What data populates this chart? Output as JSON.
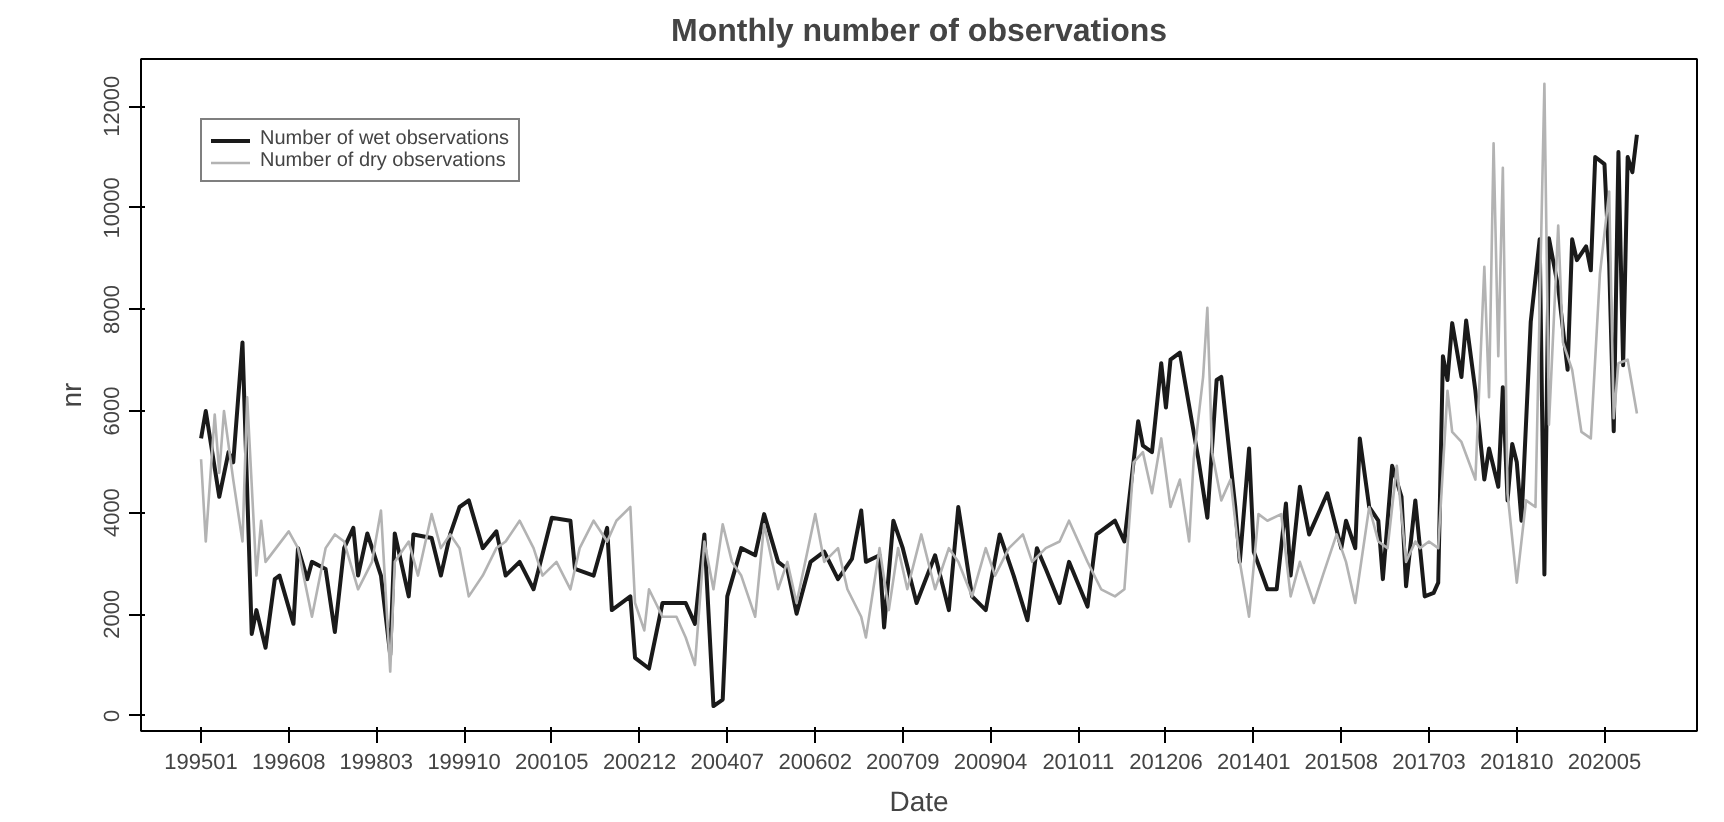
{
  "chart_data": {
    "type": "line",
    "title": "Monthly number of observations",
    "xlabel": "Date",
    "ylabel": "nr",
    "xlim": [
      "1993-12",
      "2022-01"
    ],
    "ylim": [
      -300,
      12930
    ],
    "xticks": [
      {
        "value": "1995-01",
        "label": "199501"
      },
      {
        "value": "1996-08",
        "label": "199608"
      },
      {
        "value": "1998-03",
        "label": "199803"
      },
      {
        "value": "1999-10",
        "label": "199910"
      },
      {
        "value": "2001-05",
        "label": "200105"
      },
      {
        "value": "2002-12",
        "label": "200212"
      },
      {
        "value": "2004-07",
        "label": "200407"
      },
      {
        "value": "2006-02",
        "label": "200602"
      },
      {
        "value": "2007-09",
        "label": "200709"
      },
      {
        "value": "2009-04",
        "label": "200904"
      },
      {
        "value": "2010-11",
        "label": "201011"
      },
      {
        "value": "2012-06",
        "label": "201206"
      },
      {
        "value": "2014-01",
        "label": "201401"
      },
      {
        "value": "2015-08",
        "label": "201508"
      },
      {
        "value": "2017-03",
        "label": "201703"
      },
      {
        "value": "2018-10",
        "label": "201810"
      },
      {
        "value": "2020-05",
        "label": "202005"
      }
    ],
    "yticks": [
      0,
      2000,
      4000,
      6000,
      8000,
      10000,
      12000
    ],
    "grid": false,
    "legend": "top left",
    "line_style": "solid",
    "series": [
      {
        "name": "Number of wet observations",
        "color": "#1a1a1a",
        "x": [
          "1995-01",
          "1995-02",
          "1995-05",
          "1995-07",
          "1995-08",
          "1995-10",
          "1995-12",
          "1996-01",
          "1996-03",
          "1996-05",
          "1996-06",
          "1996-09",
          "1996-10",
          "1996-12",
          "1997-01",
          "1997-04",
          "1997-06",
          "1997-08",
          "1997-10",
          "1997-11",
          "1998-01",
          "1998-04",
          "1998-06",
          "1998-07",
          "1998-10",
          "1998-11",
          "1999-03",
          "1999-05",
          "1999-07",
          "1999-09",
          "1999-11",
          "2000-02",
          "2000-05",
          "2000-07",
          "2000-10",
          "2001-01",
          "2001-05",
          "2001-09",
          "2001-10",
          "2002-02",
          "2002-05",
          "2002-06",
          "2002-10",
          "2002-11",
          "2003-02",
          "2003-05",
          "2003-10",
          "2003-12",
          "2004-02",
          "2004-04",
          "2004-06",
          "2004-07",
          "2004-10",
          "2005-01",
          "2005-03",
          "2005-06",
          "2005-08",
          "2005-10",
          "2006-01",
          "2006-04",
          "2006-07",
          "2006-10",
          "2006-12",
          "2007-01",
          "2007-04",
          "2007-05",
          "2007-07",
          "2007-09",
          "2007-12",
          "2008-04",
          "2008-07",
          "2008-09",
          "2008-12",
          "2009-03",
          "2009-06",
          "2009-09",
          "2009-12",
          "2010-02",
          "2010-04",
          "2010-07",
          "2010-09",
          "2011-01",
          "2011-03",
          "2011-07",
          "2011-09",
          "2011-12",
          "2012-01",
          "2012-03",
          "2012-05",
          "2012-06",
          "2012-07",
          "2012-09",
          "2013-01",
          "2013-03",
          "2013-05",
          "2013-06",
          "2013-09",
          "2013-10",
          "2013-12",
          "2014-01",
          "2014-04",
          "2014-06",
          "2014-08",
          "2014-09",
          "2014-11",
          "2015-01",
          "2015-05",
          "2015-08",
          "2015-09",
          "2015-11",
          "2015-12",
          "2016-02",
          "2016-04",
          "2016-05",
          "2016-07",
          "2016-09",
          "2016-10",
          "2016-12",
          "2017-02",
          "2017-04",
          "2017-05",
          "2017-06",
          "2017-07",
          "2017-08",
          "2017-10",
          "2017-11",
          "2018-01",
          "2018-03",
          "2018-04",
          "2018-06",
          "2018-07",
          "2018-08",
          "2018-09",
          "2018-10",
          "2018-11",
          "2019-01",
          "2019-03",
          "2019-04",
          "2019-05",
          "2019-07",
          "2019-09",
          "2019-10",
          "2019-11",
          "2020-01",
          "2020-02",
          "2020-03",
          "2020-05",
          "2020-06",
          "2020-07",
          "2020-08",
          "2020-09",
          "2020-10",
          "2020-11",
          "2020-12"
        ],
        "values": [
          5460,
          6000,
          4310,
          5190,
          4990,
          7350,
          1610,
          2080,
          1340,
          2690,
          2760,
          1810,
          3300,
          2690,
          3030,
          2890,
          1650,
          3300,
          3700,
          2760,
          3590,
          2760,
          1200,
          3590,
          2350,
          3570,
          3500,
          2760,
          3570,
          4110,
          4240,
          3300,
          3630,
          2760,
          3030,
          2490,
          3900,
          3840,
          2890,
          2760,
          3700,
          2080,
          2350,
          1140,
          930,
          2220,
          2220,
          1810,
          3570,
          190,
          320,
          2350,
          3300,
          3160,
          3970,
          3030,
          2890,
          2010,
          3030,
          3230,
          2690,
          3090,
          4040,
          3030,
          3160,
          1740,
          3840,
          3300,
          2220,
          3160,
          2080,
          4110,
          2350,
          2080,
          3570,
          2760,
          1880,
          3300,
          2890,
          2220,
          3030,
          2150,
          3570,
          3840,
          3430,
          5800,
          5320,
          5190,
          6940,
          6070,
          7010,
          7150,
          5050,
          3900,
          6610,
          6670,
          4110,
          3030,
          5260,
          3230,
          2490,
          2490,
          4180,
          2760,
          4510,
          3570,
          4380,
          3300,
          3840,
          3300,
          5460,
          4110,
          3840,
          2690,
          4920,
          4310,
          2550,
          4240,
          2350,
          2420,
          2620,
          7080,
          6610,
          7730,
          6670,
          7780,
          6400,
          4650,
          5260,
          4510,
          6470,
          4240,
          5350,
          4990,
          3840,
          7760,
          9380,
          2780,
          9400,
          8430,
          6810,
          9380,
          8970,
          9240,
          8770,
          11000,
          10860,
          8900,
          5600,
          11100,
          6900,
          11000,
          10700,
          11440
        ]
      },
      {
        "name": "Number of dry observations",
        "color": "#b3b3b3",
        "x": [
          "1995-01",
          "1995-02",
          "1995-04",
          "1995-05",
          "1995-06",
          "1995-08",
          "1995-10",
          "1995-11",
          "1996-01",
          "1996-02",
          "1996-03",
          "1996-08",
          "1996-10",
          "1997-01",
          "1997-04",
          "1997-06",
          "1997-08",
          "1997-11",
          "1998-02",
          "1998-04",
          "1998-06",
          "1998-07",
          "1998-10",
          "1998-12",
          "1999-03",
          "1999-05",
          "1999-07",
          "1999-09",
          "1999-11",
          "2000-02",
          "2000-05",
          "2000-07",
          "2000-10",
          "2001-01",
          "2001-03",
          "2001-06",
          "2001-09",
          "2001-11",
          "2002-02",
          "2002-05",
          "2002-07",
          "2002-10",
          "2002-11",
          "2003-01",
          "2003-02",
          "2003-05",
          "2003-08",
          "2003-10",
          "2003-12",
          "2004-02",
          "2004-04",
          "2004-06",
          "2004-08",
          "2004-10",
          "2005-01",
          "2005-03",
          "2005-06",
          "2005-08",
          "2005-10",
          "2006-02",
          "2006-04",
          "2006-07",
          "2006-09",
          "2006-12",
          "2007-01",
          "2007-04",
          "2007-06",
          "2007-08",
          "2007-10",
          "2008-01",
          "2008-04",
          "2008-07",
          "2008-09",
          "2008-12",
          "2009-03",
          "2009-05",
          "2009-08",
          "2009-11",
          "2010-01",
          "2010-04",
          "2010-07",
          "2010-09",
          "2011-01",
          "2011-04",
          "2011-07",
          "2011-09",
          "2011-11",
          "2012-01",
          "2012-03",
          "2012-05",
          "2012-07",
          "2012-09",
          "2012-11",
          "2012-12",
          "2013-02",
          "2013-03",
          "2013-04",
          "2013-06",
          "2013-08",
          "2013-10",
          "2013-12",
          "2014-02",
          "2014-04",
          "2014-07",
          "2014-09",
          "2014-11",
          "2015-02",
          "2015-04",
          "2015-07",
          "2015-09",
          "2015-11",
          "2016-02",
          "2016-04",
          "2016-06",
          "2016-08",
          "2016-10",
          "2016-12",
          "2017-01",
          "2017-03",
          "2017-05",
          "2017-07",
          "2017-08",
          "2017-10",
          "2018-01",
          "2018-03",
          "2018-04",
          "2018-05",
          "2018-06",
          "2018-07",
          "2018-08",
          "2018-10",
          "2018-12",
          "2019-02",
          "2019-04",
          "2019-05",
          "2019-07",
          "2019-08",
          "2019-10",
          "2019-12",
          "2020-02",
          "2020-04",
          "2020-06",
          "2020-07",
          "2020-08",
          "2020-10",
          "2020-12"
        ],
        "values": [
          5050,
          3430,
          5930,
          4780,
          6000,
          4650,
          3430,
          6270,
          2760,
          3840,
          3030,
          3630,
          3300,
          1950,
          3300,
          3570,
          3430,
          2490,
          3030,
          4040,
          870,
          3030,
          3430,
          2760,
          3970,
          3300,
          3570,
          3300,
          2350,
          2760,
          3300,
          3430,
          3840,
          3300,
          2760,
          3030,
          2490,
          3300,
          3840,
          3430,
          3840,
          4110,
          2220,
          1680,
          2490,
          1950,
          1950,
          1540,
          1000,
          3430,
          2490,
          3770,
          3030,
          2760,
          1950,
          3770,
          2490,
          3030,
          2220,
          3970,
          3030,
          3300,
          2490,
          1950,
          1540,
          3300,
          2080,
          3300,
          2490,
          3570,
          2490,
          3300,
          3030,
          2350,
          3300,
          2760,
          3300,
          3570,
          3030,
          3300,
          3430,
          3840,
          3030,
          2490,
          2350,
          2490,
          4990,
          5190,
          4380,
          5460,
          4110,
          4650,
          3430,
          5050,
          6670,
          8030,
          5190,
          4240,
          4650,
          3030,
          1950,
          3970,
          3840,
          3970,
          2350,
          3030,
          2220,
          2760,
          3570,
          3030,
          2220,
          4110,
          3430,
          3300,
          4920,
          3030,
          3430,
          3300,
          3430,
          3300,
          6400,
          5590,
          5390,
          4650,
          8840,
          6270,
          11270,
          7080,
          10790,
          4380,
          2620,
          4240,
          4110,
          12440,
          5730,
          9650,
          7350,
          6810,
          5590,
          5460,
          8700,
          10320,
          5860,
          6940,
          7010,
          5950
        ]
      }
    ]
  }
}
